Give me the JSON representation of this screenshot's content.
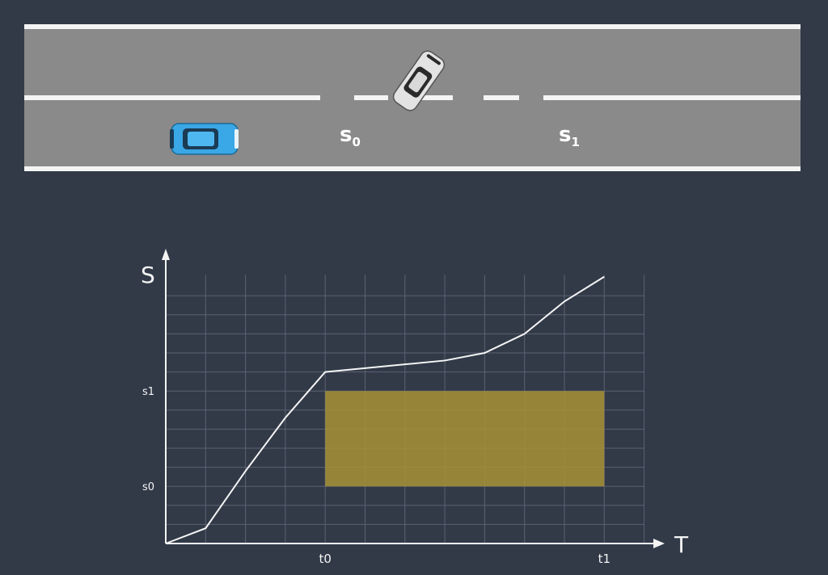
{
  "road": {
    "label_s0": {
      "base": "s",
      "sub": "0"
    },
    "label_s1": {
      "base": "s",
      "sub": "1"
    }
  },
  "colors": {
    "background": "#323a48",
    "road": "#8a8a8a",
    "lane_lines": "#f4f4f4",
    "ego_car": "#3aa7e6",
    "other_car": "#d9d9d9",
    "blocked_region": "#a89236",
    "curve": "#f4f4f4",
    "grid": "#5b6272"
  },
  "chart_data": {
    "type": "line",
    "title": "",
    "xlabel": "T",
    "ylabel": "S",
    "x_ticks": [
      {
        "label": "t0",
        "x": 4
      },
      {
        "label": "t1",
        "x": 11
      }
    ],
    "y_ticks": [
      {
        "label": "s0",
        "y": 3
      },
      {
        "label": "s1",
        "y": 8
      }
    ],
    "xlim": [
      0,
      12
    ],
    "ylim": [
      0,
      14
    ],
    "grid": true,
    "series": [
      {
        "x": [
          0,
          1,
          2,
          3,
          4,
          5,
          6,
          7,
          8,
          9,
          10,
          11
        ],
        "y": [
          0,
          0.8,
          3.8,
          6.6,
          9,
          9.2,
          9.4,
          9.6,
          10,
          11,
          12.7,
          14
        ]
      }
    ],
    "blocked_region": {
      "x0": 4,
      "x1": 11,
      "y0": 3,
      "y1": 8
    }
  }
}
